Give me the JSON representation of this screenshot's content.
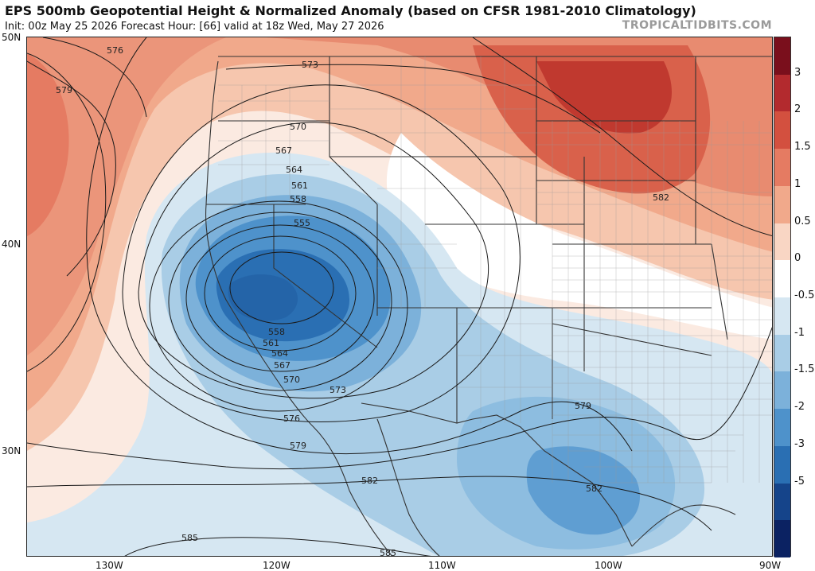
{
  "header": {
    "title": "EPS 500mb Geopotential Height & Normalized Anomaly (based on CFSR 1981-2010 Climatology)",
    "subtitle": "Init: 00z May 25 2026   Forecast Hour: [66]   valid at 18z Wed, May 27 2026",
    "watermark": "TROPICALTIDBITS.COM"
  },
  "axes": {
    "lat_labels": [
      "50N",
      "40N",
      "30N"
    ],
    "lon_labels": [
      "130W",
      "120W",
      "110W",
      "100W",
      "90W"
    ]
  },
  "colorbar": {
    "labels": [
      "3",
      "2",
      "1.5",
      "1",
      "0.5",
      "0",
      "-0.5",
      "-1",
      "-1.5",
      "-2",
      "-3",
      "-5"
    ],
    "colors": [
      "#7a0f1c",
      "#b32a2e",
      "#d3503f",
      "#e57b62",
      "#f1a98b",
      "#f9d6c4",
      "#ffffff",
      "#d6e7f2",
      "#a9cde6",
      "#7cb1da",
      "#4e92cb",
      "#2a6fb3",
      "#15448a",
      "#0b2262"
    ]
  },
  "contours": {
    "labels": [
      "576",
      "579",
      "573",
      "570",
      "567",
      "564",
      "561",
      "558",
      "555",
      "558",
      "561",
      "564",
      "567",
      "570",
      "573",
      "576",
      "579",
      "582",
      "582",
      "579",
      "582",
      "585",
      "585"
    ]
  },
  "map": {
    "domain": "western and central United States, northern Mexico and eastern Pacific",
    "field": "500mb geopotential height contours (dam) over normalized anomaly shading"
  }
}
